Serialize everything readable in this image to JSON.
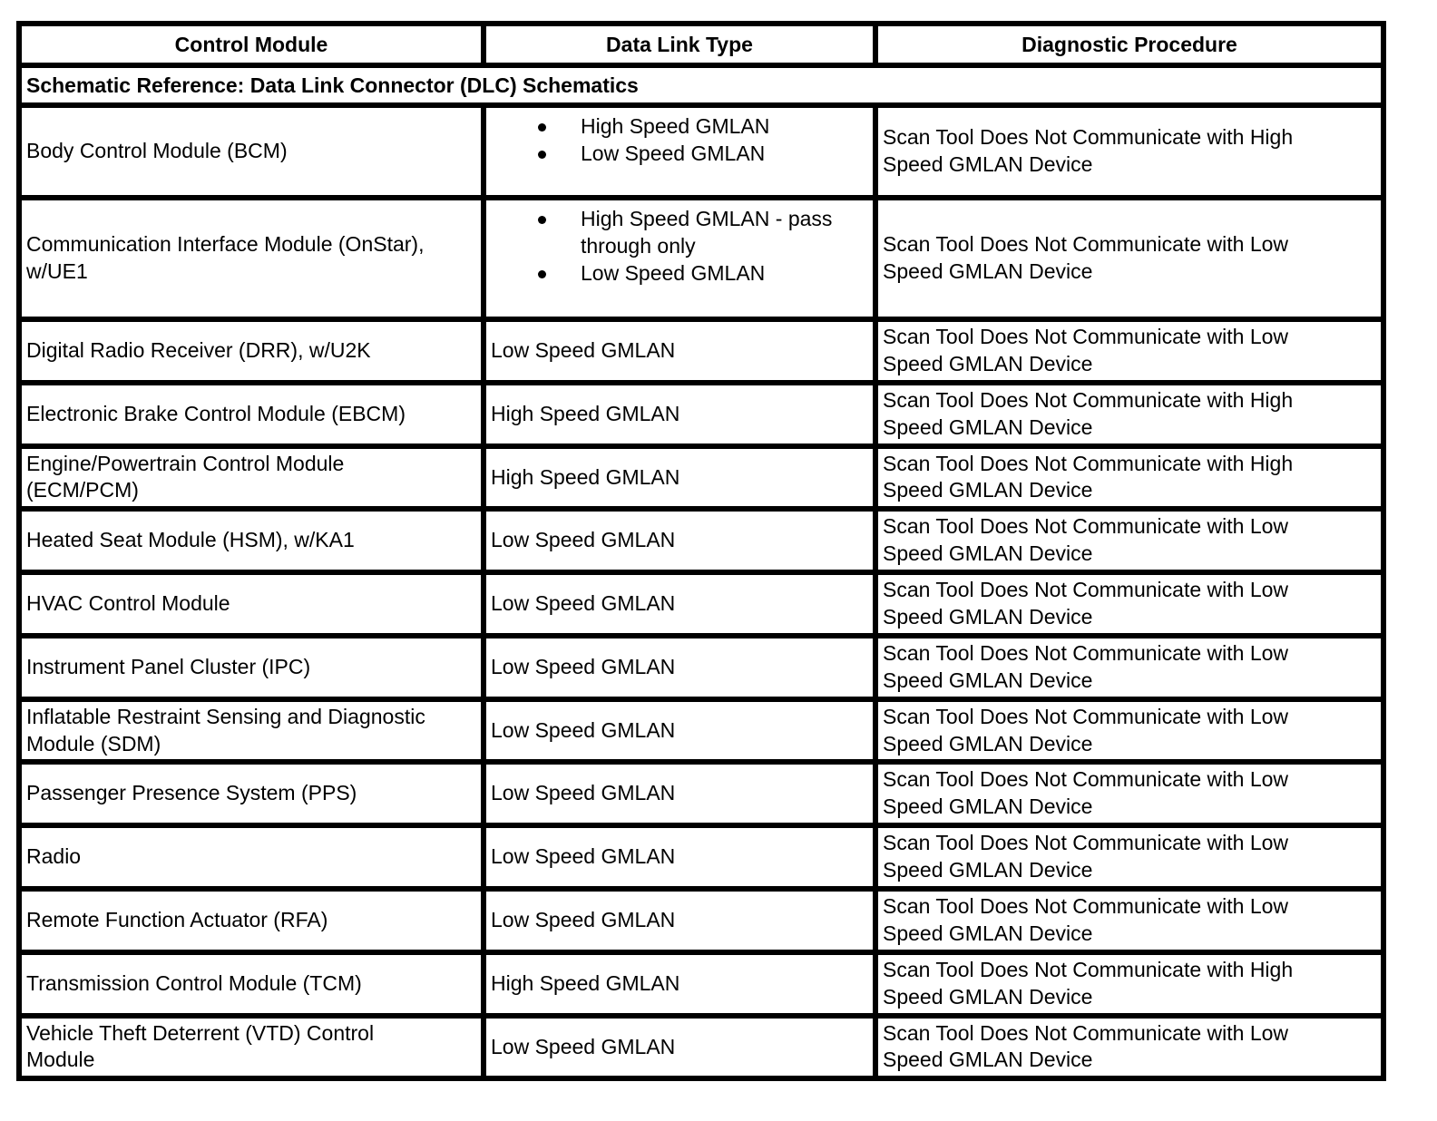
{
  "page": {
    "background_color": "#ffffff",
    "border_color": "#000000",
    "text_color": "#000000"
  },
  "table": {
    "columns": [
      "Control Module",
      "Data Link Type",
      "Diagnostic Procedure"
    ],
    "section_header": "Schematic Reference: Data Link Connector (DLC) Schematics",
    "rows": [
      {
        "control_module": "Body Control Module (BCM)",
        "data_link_types": [
          "High Speed GMLAN",
          "Low Speed GMLAN"
        ],
        "bulleted": true,
        "diagnostic_procedure": "Scan Tool Does Not Communicate with High Speed GMLAN Device"
      },
      {
        "control_module": "Communication Interface Module (OnStar), w/UE1",
        "data_link_types": [
          "High Speed GMLAN - pass through only",
          "Low Speed GMLAN"
        ],
        "bulleted": true,
        "diagnostic_procedure": "Scan Tool Does Not Communicate with Low Speed GMLAN Device"
      },
      {
        "control_module": "Digital Radio Receiver (DRR), w/U2K",
        "data_link_types": [
          "Low Speed GMLAN"
        ],
        "bulleted": false,
        "diagnostic_procedure": "Scan Tool Does Not Communicate with Low Speed GMLAN Device"
      },
      {
        "control_module": "Electronic Brake Control Module (EBCM)",
        "data_link_types": [
          "High Speed GMLAN"
        ],
        "bulleted": false,
        "diagnostic_procedure": "Scan Tool Does Not Communicate with High Speed GMLAN Device"
      },
      {
        "control_module": "Engine/Powertrain Control Module (ECM/PCM)",
        "data_link_types": [
          "High Speed GMLAN"
        ],
        "bulleted": false,
        "diagnostic_procedure": "Scan Tool Does Not Communicate with High Speed GMLAN Device"
      },
      {
        "control_module": "Heated Seat Module (HSM), w/KA1",
        "data_link_types": [
          "Low Speed GMLAN"
        ],
        "bulleted": false,
        "diagnostic_procedure": "Scan Tool Does Not Communicate with Low Speed GMLAN Device"
      },
      {
        "control_module": "HVAC Control Module",
        "data_link_types": [
          "Low Speed GMLAN"
        ],
        "bulleted": false,
        "diagnostic_procedure": "Scan Tool Does Not Communicate with Low Speed GMLAN Device"
      },
      {
        "control_module": "Instrument Panel Cluster (IPC)",
        "data_link_types": [
          "Low Speed GMLAN"
        ],
        "bulleted": false,
        "diagnostic_procedure": "Scan Tool Does Not Communicate with Low Speed GMLAN Device"
      },
      {
        "control_module": "Inflatable Restraint Sensing and Diagnostic Module (SDM)",
        "data_link_types": [
          "Low Speed GMLAN"
        ],
        "bulleted": false,
        "diagnostic_procedure": "Scan Tool Does Not Communicate with Low Speed GMLAN Device"
      },
      {
        "control_module": "Passenger Presence System (PPS)",
        "data_link_types": [
          "Low Speed GMLAN"
        ],
        "bulleted": false,
        "diagnostic_procedure": "Scan Tool Does Not Communicate with Low Speed GMLAN Device"
      },
      {
        "control_module": "Radio",
        "data_link_types": [
          "Low Speed GMLAN"
        ],
        "bulleted": false,
        "diagnostic_procedure": "Scan Tool Does Not Communicate with Low Speed GMLAN Device"
      },
      {
        "control_module": "Remote Function Actuator (RFA)",
        "data_link_types": [
          "Low Speed GMLAN"
        ],
        "bulleted": false,
        "diagnostic_procedure": "Scan Tool Does Not Communicate with Low Speed GMLAN Device"
      },
      {
        "control_module": "Transmission Control Module (TCM)",
        "data_link_types": [
          "High Speed GMLAN"
        ],
        "bulleted": false,
        "diagnostic_procedure": "Scan Tool Does Not Communicate with High Speed GMLAN Device"
      },
      {
        "control_module": "Vehicle Theft Deterrent (VTD) Control Module",
        "data_link_types": [
          "Low Speed GMLAN"
        ],
        "bulleted": false,
        "diagnostic_procedure": "Scan Tool Does Not Communicate with Low Speed GMLAN Device"
      }
    ]
  }
}
